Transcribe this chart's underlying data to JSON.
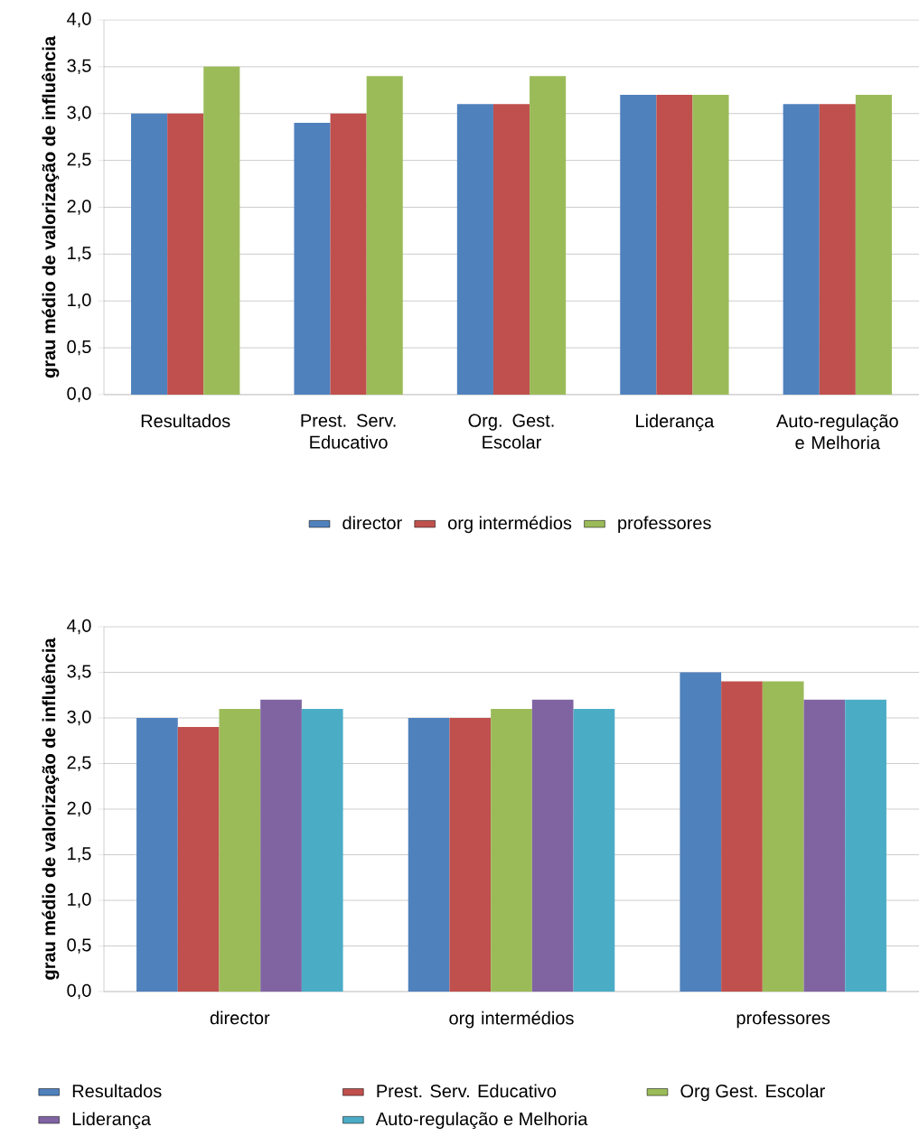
{
  "chart_data": [
    {
      "type": "bar",
      "ylabel": "grau médio de valorização de influência",
      "categories": [
        "Resultados",
        "Prest. Serv. Educativo",
        "Org. Gest. Escolar",
        "Liderança",
        "Auto-regulação e Melhoria"
      ],
      "series": [
        {
          "name": "director",
          "color": "#4f81bd",
          "values": [
            3.0,
            2.9,
            3.1,
            3.2,
            3.1
          ]
        },
        {
          "name": "org intermédios",
          "color": "#c0504d",
          "values": [
            3.0,
            3.0,
            3.1,
            3.2,
            3.1
          ]
        },
        {
          "name": "professores",
          "color": "#9bbb59",
          "values": [
            3.5,
            3.4,
            3.4,
            3.2,
            3.2
          ]
        }
      ],
      "ylim": [
        0,
        4
      ],
      "yticks": [
        {
          "value": 0,
          "label": "0,0"
        },
        {
          "value": 0.5,
          "label": "0,5"
        },
        {
          "value": 1,
          "label": "1,0"
        },
        {
          "value": 1.5,
          "label": "1,5"
        },
        {
          "value": 2,
          "label": "2,0"
        },
        {
          "value": 2.5,
          "label": "2,5"
        },
        {
          "value": 3,
          "label": "3,0"
        },
        {
          "value": 3.5,
          "label": "3,5"
        },
        {
          "value": 4,
          "label": "4,0"
        }
      ],
      "grid": "y",
      "legend": "bottom"
    },
    {
      "type": "bar",
      "ylabel": "grau médio de valorização de influência",
      "categories": [
        "director",
        "org intermédios",
        "professores"
      ],
      "series": [
        {
          "name": "Resultados",
          "color": "#4f81bd",
          "values": [
            3.0,
            3.0,
            3.5
          ]
        },
        {
          "name": "Prest. Serv. Educativo",
          "color": "#c0504d",
          "values": [
            2.9,
            3.0,
            3.4
          ]
        },
        {
          "name": "Org Gest. Escolar",
          "color": "#9bbb59",
          "values": [
            3.1,
            3.1,
            3.4
          ]
        },
        {
          "name": "Liderança",
          "color": "#8064a2",
          "values": [
            3.2,
            3.2,
            3.2
          ]
        },
        {
          "name": "Auto-regulação e Melhoria",
          "color": "#4bacc6",
          "values": [
            3.1,
            3.1,
            3.2
          ]
        }
      ],
      "ylim": [
        0,
        4
      ],
      "yticks": [
        {
          "value": 0,
          "label": "0,0"
        },
        {
          "value": 0.5,
          "label": "0,5"
        },
        {
          "value": 1,
          "label": "1,0"
        },
        {
          "value": 1.5,
          "label": "1,5"
        },
        {
          "value": 2,
          "label": "2,0"
        },
        {
          "value": 2.5,
          "label": "2,5"
        },
        {
          "value": 3,
          "label": "3,0"
        },
        {
          "value": 3.5,
          "label": "3,5"
        },
        {
          "value": 4,
          "label": "4,0"
        }
      ],
      "grid": "y",
      "legend": "bottom"
    }
  ]
}
